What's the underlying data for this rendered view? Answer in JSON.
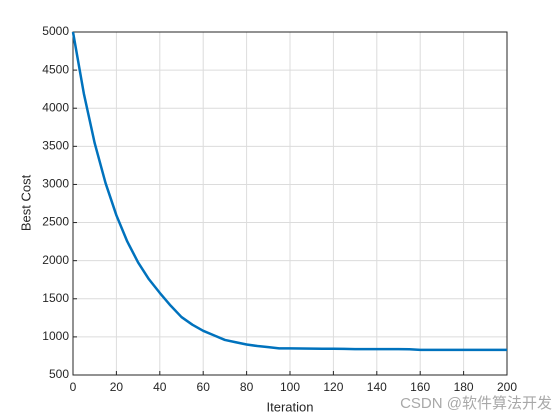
{
  "chart_data": {
    "type": "line",
    "xlabel": "Iteration",
    "ylabel": "Best Cost",
    "x": [
      0,
      5,
      10,
      15,
      20,
      25,
      30,
      35,
      40,
      45,
      50,
      55,
      60,
      65,
      70,
      75,
      80,
      85,
      90,
      95,
      100,
      105,
      110,
      115,
      120,
      125,
      130,
      135,
      140,
      145,
      150,
      155,
      160,
      165,
      170,
      175,
      180,
      185,
      190,
      195,
      200
    ],
    "series": [
      {
        "name": "Best Cost",
        "color": "#0072bd",
        "values": [
          5000,
          4192,
          3541,
          3018,
          2595,
          2252,
          1977,
          1756,
          1577,
          1410,
          1260,
          1160,
          1080,
          1020,
          960,
          930,
          900,
          880,
          865,
          850,
          850,
          848,
          846,
          845,
          845,
          842,
          840,
          840,
          840,
          840,
          840,
          838,
          830,
          830,
          830,
          830,
          830,
          830,
          830,
          830,
          830
        ]
      }
    ],
    "xlim": [
      0,
      200
    ],
    "xticks": [
      0,
      20,
      40,
      60,
      80,
      100,
      120,
      140,
      160,
      180,
      200
    ],
    "ylim": [
      500,
      5000
    ],
    "yticks": [
      500,
      1000,
      1500,
      2000,
      2500,
      3000,
      3500,
      4000,
      4500,
      5000
    ],
    "grid": true,
    "watermark": "CSDN @软件算法开发"
  }
}
